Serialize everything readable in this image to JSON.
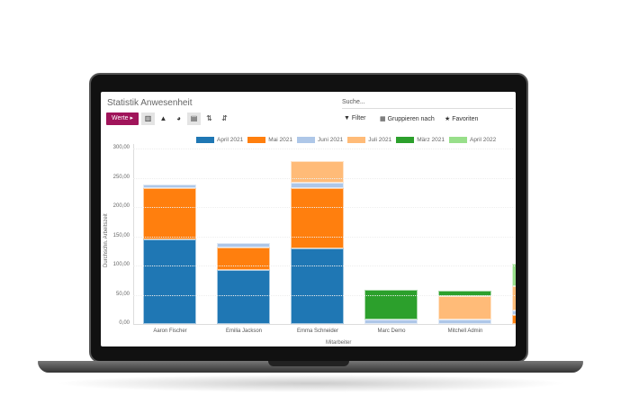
{
  "title": "Statistik Anwesenheit",
  "search": {
    "placeholder": "Suche..."
  },
  "toolbar": {
    "werte_label": "Werte ▸",
    "filter_label": "Filter",
    "group_label": "Gruppieren nach",
    "favorites_label": "Favoriten"
  },
  "chart_data": {
    "type": "bar",
    "stacked": true,
    "categories": [
      "Aaron Fischer",
      "Emilia Jackson",
      "Emma Schneider",
      "Marc Demo",
      "Mitchell Admin",
      ""
    ],
    "xlabel": "Mitarbeiter",
    "ylabel": "Durchschn. Arbeitszeit",
    "ylim": [
      0,
      300
    ],
    "yticks": [
      "0,00",
      "50,00",
      "100,00",
      "150,00",
      "200,00",
      "250,00",
      "300,00"
    ],
    "legend_position": "top",
    "series": [
      {
        "name": "April 2021",
        "color": "#1f77b4",
        "values": [
          145,
          93,
          129,
          0,
          0,
          0
        ]
      },
      {
        "name": "Mai 2021",
        "color": "#ff7f0e",
        "values": [
          88,
          38,
          103,
          0,
          0,
          15
        ]
      },
      {
        "name": "Juni 2021",
        "color": "#aec7e8",
        "values": [
          6,
          7,
          10,
          8,
          8,
          8
        ]
      },
      {
        "name": "Juli 2021",
        "color": "#ffbb78",
        "values": [
          0,
          0,
          36,
          0,
          40,
          42
        ]
      },
      {
        "name": "März 2021",
        "color": "#2ca02c",
        "values": [
          0,
          0,
          0,
          50,
          9,
          0
        ]
      },
      {
        "name": "April 2022",
        "color": "#98df8a",
        "values": [
          0,
          0,
          0,
          0,
          0,
          38
        ]
      }
    ]
  }
}
